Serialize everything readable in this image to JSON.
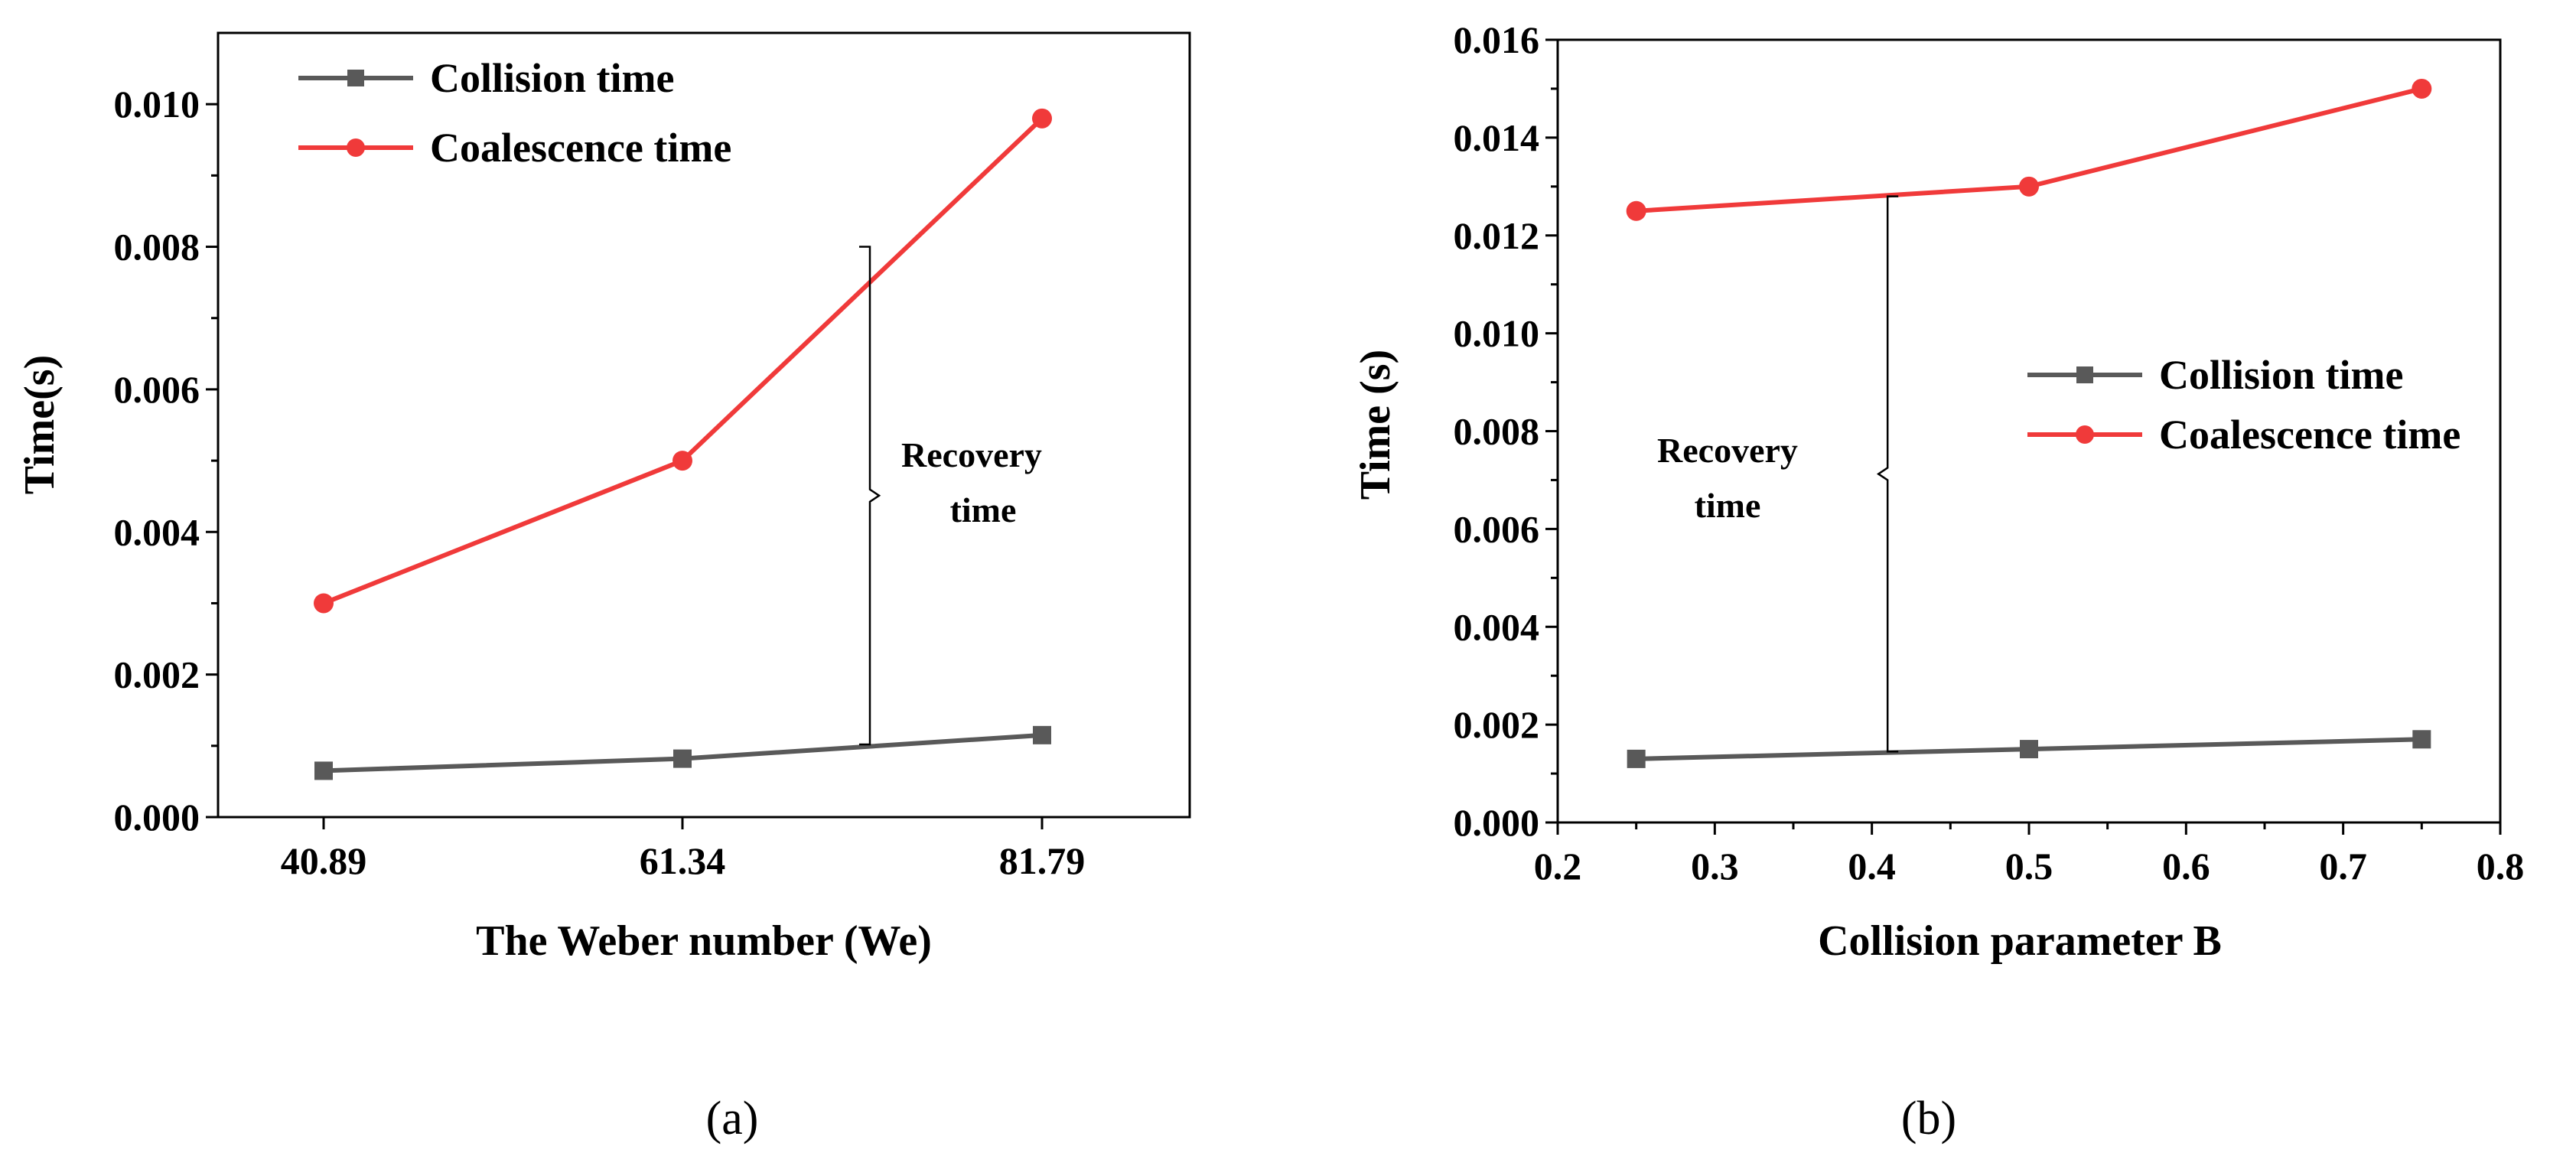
{
  "chart_data": [
    {
      "panel": "a",
      "type": "line",
      "panel_label": "(a)",
      "xlabel": "The Weber number (We)",
      "ylabel": "Time(s)",
      "x_is_categorical": true,
      "categories": [
        "40.89",
        "61.34",
        "81.79"
      ],
      "x_tick_labels": [
        "40.89",
        "61.34",
        "81.79"
      ],
      "ylim": [
        0,
        0.011
      ],
      "y_ticks": [
        0,
        0.002,
        0.004,
        0.006,
        0.008,
        0.01
      ],
      "y_tick_labels": [
        "0.000",
        "0.002",
        "0.004",
        "0.006",
        "0.008",
        "0.010"
      ],
      "series": [
        {
          "name": "Collision time",
          "marker": "square",
          "color": "#595959",
          "values": [
            0.00065,
            0.00082,
            0.00115
          ]
        },
        {
          "name": "Coalescence time",
          "marker": "circle",
          "color": "#f03a3a",
          "values": [
            0.003,
            0.005,
            0.0098
          ]
        }
      ],
      "legend": {
        "position": "top-left",
        "entries": [
          "Collision time",
          "Coalescence time"
        ]
      },
      "annotation": {
        "lines": [
          "Recovery",
          "time"
        ],
        "bracket_x": 72,
        "bracket_y": [
          0.00102,
          0.008
        ]
      }
    },
    {
      "panel": "b",
      "type": "line",
      "panel_label": "(b)",
      "xlabel": "Collision parameter B",
      "ylabel": "Time (s)",
      "x_is_categorical": false,
      "xlim": [
        0.2,
        0.8
      ],
      "x_ticks": [
        0.2,
        0.3,
        0.4,
        0.5,
        0.6,
        0.7,
        0.8
      ],
      "x_tick_labels": [
        "0.2",
        "0.3",
        "0.4",
        "0.5",
        "0.6",
        "0.7",
        "0.8"
      ],
      "ylim": [
        0,
        0.016
      ],
      "y_ticks": [
        0,
        0.002,
        0.004,
        0.006,
        0.008,
        0.01,
        0.012,
        0.014,
        0.016
      ],
      "y_tick_labels": [
        "0.000",
        "0.002",
        "0.004",
        "0.006",
        "0.008",
        "0.010",
        "0.012",
        "0.014",
        "0.016"
      ],
      "series": [
        {
          "name": "Collision time",
          "marker": "square",
          "color": "#595959",
          "x": [
            0.25,
            0.5,
            0.75
          ],
          "values": [
            0.0013,
            0.0015,
            0.0017
          ]
        },
        {
          "name": "Coalescence time",
          "marker": "circle",
          "color": "#f03a3a",
          "x": [
            0.25,
            0.5,
            0.75
          ],
          "values": [
            0.0125,
            0.013,
            0.015
          ]
        }
      ],
      "legend": {
        "position": "middle-right",
        "entries": [
          "Collision time",
          "Coalescence time"
        ]
      },
      "annotation": {
        "lines": [
          "Recovery",
          "time"
        ],
        "bracket_x": 0.41,
        "bracket_y": [
          0.00145,
          0.0128
        ]
      }
    }
  ]
}
